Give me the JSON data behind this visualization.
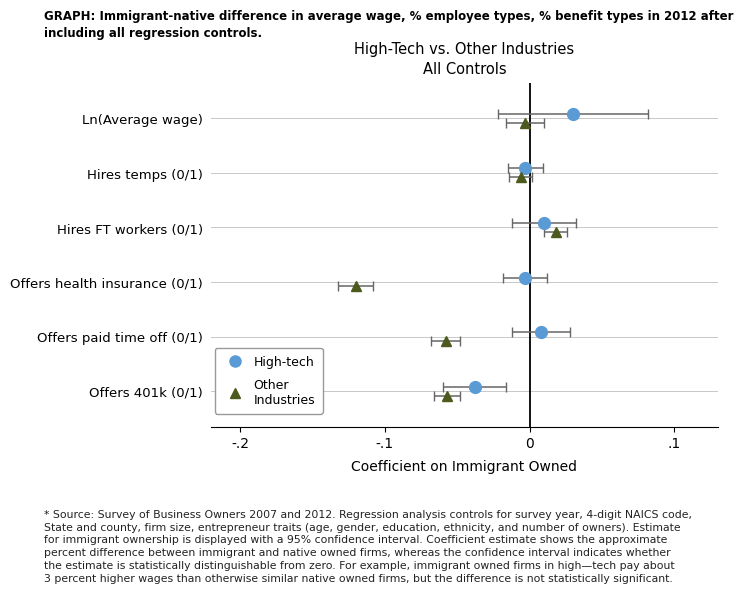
{
  "title_graph": "GRAPH: Immigrant-native difference in average wage, % employee types, % benefit types in 2012 after\nincluding all regression controls.",
  "subtitle": "High-Tech vs. Other Industries\nAll Controls",
  "xlabel": "Coefficient on Immigrant Owned",
  "categories": [
    "Ln(Average wage)",
    "Hires temps (0/1)",
    "Hires FT workers (0/1)",
    "Offers health insurance (0/1)",
    "Offers paid time off (0/1)",
    "Offers 401k (0/1)"
  ],
  "hightech_coef": [
    0.03,
    -0.003,
    0.01,
    -0.003,
    0.008,
    -0.038
  ],
  "hightech_ci_low": [
    -0.022,
    -0.015,
    -0.012,
    -0.018,
    -0.012,
    -0.06
  ],
  "hightech_ci_high": [
    0.082,
    0.009,
    0.032,
    0.012,
    0.028,
    -0.016
  ],
  "other_coef": [
    -0.003,
    -0.006,
    0.018,
    -0.12,
    -0.058,
    -0.057
  ],
  "other_ci_low": [
    -0.016,
    -0.014,
    0.01,
    -0.132,
    -0.068,
    -0.066
  ],
  "other_ci_high": [
    0.01,
    0.002,
    0.026,
    -0.108,
    -0.048,
    -0.048
  ],
  "xlim": [
    -0.22,
    0.13
  ],
  "xticks": [
    -0.2,
    -0.1,
    0.0,
    0.1
  ],
  "xticklabels": [
    "-.2",
    "-.1",
    "0",
    ".1"
  ],
  "hightech_color": "#5b9bd5",
  "other_color": "#4d5a1e",
  "voffset": 0.08,
  "footnote": "* Source: Survey of Business Owners 2007 and 2012. Regression analysis controls for survey year, 4-digit NAICS code,\nState and county, firm size, entrepreneur traits (age, gender, education, ethnicity, and number of owners). Estimate\nfor immigrant ownership is displayed with a 95% confidence interval. Coefficient estimate shows the approximate\npercent difference between immigrant and native owned firms, whereas the confidence interval indicates whether\nthe estimate is statistically distinguishable from zero. For example, immigrant owned firms in high—tech pay about\n3 percent higher wages than otherwise similar native owned firms, but the difference is not statistically significant."
}
